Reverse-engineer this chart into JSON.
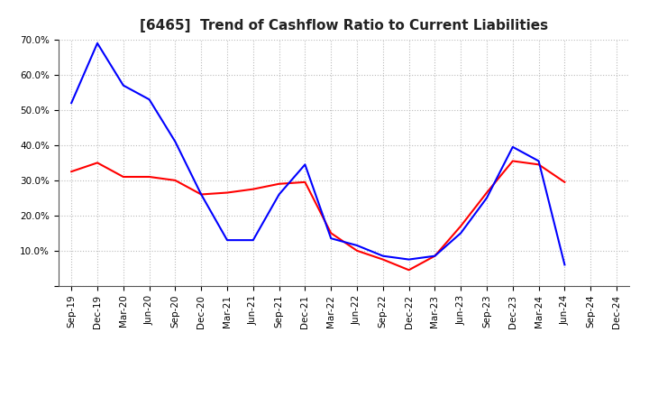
{
  "title": "[6465]  Trend of Cashflow Ratio to Current Liabilities",
  "x_labels": [
    "Sep-19",
    "Dec-19",
    "Mar-20",
    "Jun-20",
    "Sep-20",
    "Dec-20",
    "Mar-21",
    "Jun-21",
    "Sep-21",
    "Dec-21",
    "Mar-22",
    "Jun-22",
    "Sep-22",
    "Dec-22",
    "Mar-23",
    "Jun-23",
    "Sep-23",
    "Dec-23",
    "Mar-24",
    "Jun-24",
    "Sep-24",
    "Dec-24"
  ],
  "operating_cf": [
    32.5,
    35.0,
    31.0,
    31.0,
    30.0,
    26.0,
    26.5,
    27.5,
    29.0,
    29.5,
    15.0,
    10.0,
    7.5,
    4.5,
    8.5,
    17.0,
    26.5,
    35.5,
    34.5,
    29.5,
    null,
    null
  ],
  "free_cf": [
    52.0,
    69.0,
    57.0,
    53.0,
    41.0,
    26.0,
    13.0,
    13.0,
    26.0,
    34.5,
    13.5,
    11.5,
    8.5,
    7.5,
    8.5,
    15.0,
    25.0,
    39.5,
    35.5,
    6.0,
    null,
    null
  ],
  "operating_color": "#ff0000",
  "free_color": "#0000ff",
  "ylim": [
    0,
    70
  ],
  "yticks": [
    10,
    20,
    30,
    40,
    50,
    60,
    70
  ],
  "background_color": "#ffffff",
  "grid_color": "#bbbbbb",
  "title_color": "#222222",
  "title_fontsize": 11,
  "tick_fontsize": 7.5,
  "legend_fontsize": 8.5
}
